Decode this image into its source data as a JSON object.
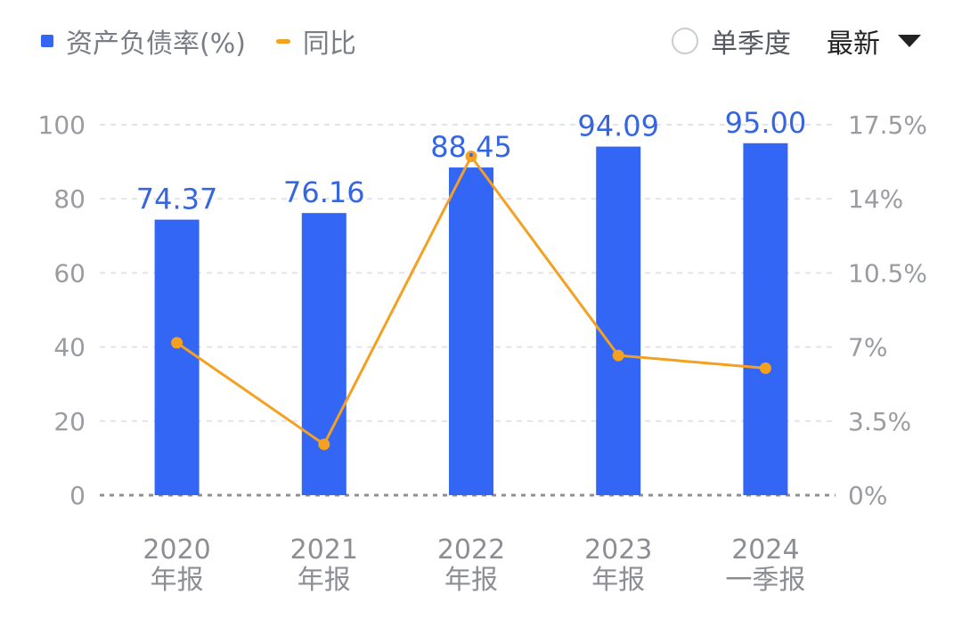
{
  "legend": {
    "bar_label": "资产负债率(%)",
    "line_label": "同比"
  },
  "controls": {
    "season_label": "单季度",
    "period_label": "最新"
  },
  "colors": {
    "bar": "#3366f5",
    "line": "#f4a021",
    "axis_text": "#9a9ca2",
    "label": "#3566e0"
  },
  "icons": {
    "radio": "radio-circle-icon",
    "dropdown": "caret-down-icon"
  },
  "chart_data": {
    "type": "bar+line",
    "categories": [
      [
        "2020",
        "年报"
      ],
      [
        "2021",
        "年报"
      ],
      [
        "2022",
        "年报"
      ],
      [
        "2023",
        "年报"
      ],
      [
        "2024",
        "一季报"
      ]
    ],
    "series": [
      {
        "name": "资产负债率(%)",
        "type": "bar",
        "axis": "left",
        "values": [
          74.37,
          76.16,
          88.45,
          94.09,
          95.0
        ],
        "labels": [
          "74.37",
          "76.16",
          "88.45",
          "94.09",
          "95.00"
        ]
      },
      {
        "name": "同比",
        "type": "line",
        "axis": "right",
        "values": [
          7.2,
          2.4,
          16.0,
          6.6,
          6.0
        ]
      }
    ],
    "y_left": {
      "min": 0,
      "max": 100,
      "ticks": [
        0,
        20,
        40,
        60,
        80,
        100
      ],
      "tick_labels": [
        "0",
        "20",
        "40",
        "60",
        "80",
        "100"
      ]
    },
    "y_right": {
      "min": 0,
      "max": 17.5,
      "ticks": [
        0,
        3.5,
        7,
        10.5,
        14,
        17.5
      ],
      "tick_labels": [
        "0%",
        "3.5%",
        "7%",
        "10.5%",
        "14%",
        "17.5%"
      ]
    },
    "grid": true
  }
}
